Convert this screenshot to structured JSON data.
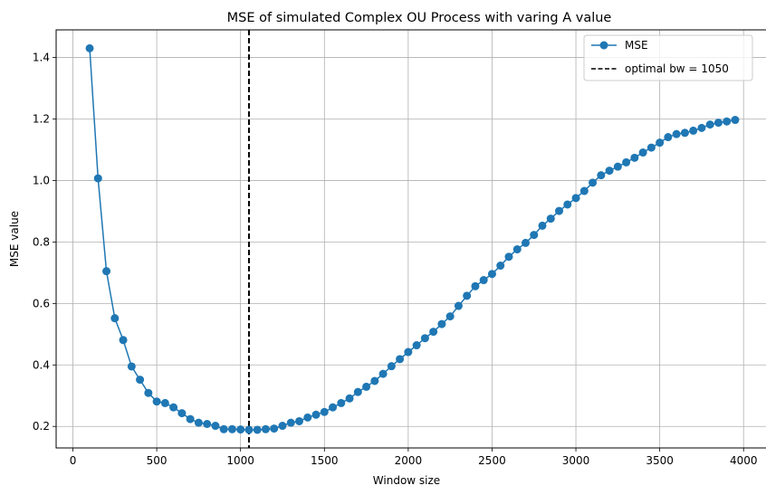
{
  "chart_data": {
    "type": "line",
    "title": "MSE of simulated Complex OU Process with varing A value",
    "xlabel": "Window size",
    "ylabel": "MSE value",
    "xlim": [
      -100,
      4150
    ],
    "ylim": [
      0.13,
      1.49
    ],
    "xticks": [
      0,
      500,
      1000,
      1500,
      2000,
      2500,
      3000,
      3500,
      4000
    ],
    "yticks": [
      0.2,
      0.4,
      0.6,
      0.8,
      1.0,
      1.2,
      1.4
    ],
    "xtick_labels": [
      "0",
      "500",
      "1000",
      "1500",
      "2000",
      "2500",
      "3000",
      "3500",
      "4000"
    ],
    "ytick_labels": [
      "0.2",
      "0.4",
      "0.6",
      "0.8",
      "1.0",
      "1.2",
      "1.4"
    ],
    "grid": true,
    "legend_position": "top-right",
    "series": [
      {
        "name": "MSE",
        "color": "#1f77b4",
        "marker": "circle",
        "x": [
          100,
          150,
          200,
          250,
          300,
          350,
          400,
          450,
          500,
          550,
          600,
          650,
          700,
          750,
          800,
          850,
          900,
          950,
          1000,
          1050,
          1100,
          1150,
          1200,
          1250,
          1300,
          1350,
          1400,
          1450,
          1500,
          1550,
          1600,
          1650,
          1700,
          1750,
          1800,
          1850,
          1900,
          1950,
          2000,
          2050,
          2100,
          2150,
          2200,
          2250,
          2300,
          2350,
          2400,
          2450,
          2500,
          2550,
          2600,
          2650,
          2700,
          2750,
          2800,
          2850,
          2900,
          2950,
          3000,
          3050,
          3100,
          3150,
          3200,
          3250,
          3300,
          3350,
          3400,
          3450,
          3500,
          3550,
          3600,
          3650,
          3700,
          3750,
          3800,
          3850,
          3900,
          3950
        ],
        "y": [
          1.43,
          1.007,
          0.705,
          0.552,
          0.481,
          0.395,
          0.352,
          0.309,
          0.281,
          0.276,
          0.262,
          0.243,
          0.224,
          0.212,
          0.208,
          0.202,
          0.191,
          0.191,
          0.19,
          0.189,
          0.189,
          0.191,
          0.193,
          0.202,
          0.212,
          0.217,
          0.229,
          0.238,
          0.247,
          0.262,
          0.276,
          0.291,
          0.312,
          0.329,
          0.348,
          0.371,
          0.396,
          0.419,
          0.442,
          0.464,
          0.487,
          0.508,
          0.533,
          0.558,
          0.592,
          0.625,
          0.656,
          0.676,
          0.696,
          0.723,
          0.752,
          0.776,
          0.797,
          0.823,
          0.853,
          0.876,
          0.901,
          0.922,
          0.943,
          0.966,
          0.993,
          1.017,
          1.032,
          1.045,
          1.059,
          1.074,
          1.091,
          1.107,
          1.123,
          1.141,
          1.151,
          1.155,
          1.162,
          1.171,
          1.182,
          1.188,
          1.192,
          1.197
        ]
      }
    ],
    "vline": {
      "x": 1050,
      "label": "optimal bw = 1050",
      "color": "#000000",
      "style": "dashed"
    }
  }
}
